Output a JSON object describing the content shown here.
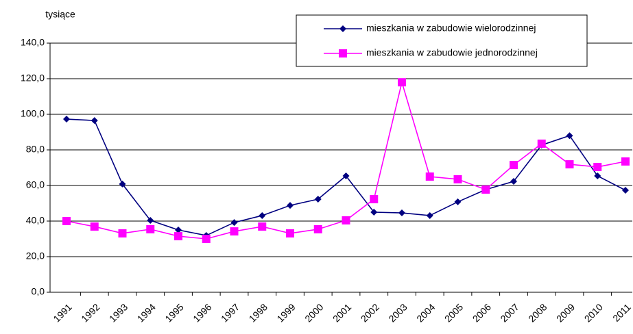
{
  "chart_data": {
    "type": "line",
    "y_label": "tysiące",
    "categories": [
      "1991",
      "1992",
      "1993",
      "1994",
      "1995",
      "1996",
      "1997",
      "1998",
      "1999",
      "2000",
      "2001",
      "2002",
      "2003",
      "2004",
      "2005",
      "2006",
      "2007",
      "2008",
      "2009",
      "2010",
      "2011"
    ],
    "series": [
      {
        "name": "mieszkania w zabudowie wielorodzinnej",
        "color": "#000080",
        "marker": "diamond",
        "values": [
          97.3,
          96.5,
          60.8,
          40.4,
          35,
          31.9,
          39.2,
          43.1,
          48.8,
          52.3,
          65.4,
          45,
          44.6,
          43.1,
          50.8,
          57.7,
          62.3,
          82.7,
          88,
          65.4,
          57.3
        ]
      },
      {
        "name": "mieszkania w zabudowie jednorodzinnej",
        "color": "#ff00ff",
        "marker": "square",
        "values": [
          40,
          36.9,
          33.1,
          35.4,
          31.5,
          30,
          34.2,
          36.9,
          33.1,
          35.4,
          40.4,
          52.3,
          118,
          65,
          63.5,
          57.7,
          71.5,
          83.5,
          71.9,
          70.4,
          73.5
        ]
      }
    ],
    "ylim": [
      0,
      140
    ],
    "yticks": [
      {
        "value": 0,
        "label": "0,0"
      },
      {
        "value": 20,
        "label": "20,0"
      },
      {
        "value": 40,
        "label": "40,0"
      },
      {
        "value": 60,
        "label": "60,0"
      },
      {
        "value": 80,
        "label": "80,0"
      },
      {
        "value": 100,
        "label": "100,0"
      },
      {
        "value": 120,
        "label": "120,0"
      },
      {
        "value": 140,
        "label": "140,0"
      }
    ],
    "grid": true,
    "legend": "top-right"
  }
}
